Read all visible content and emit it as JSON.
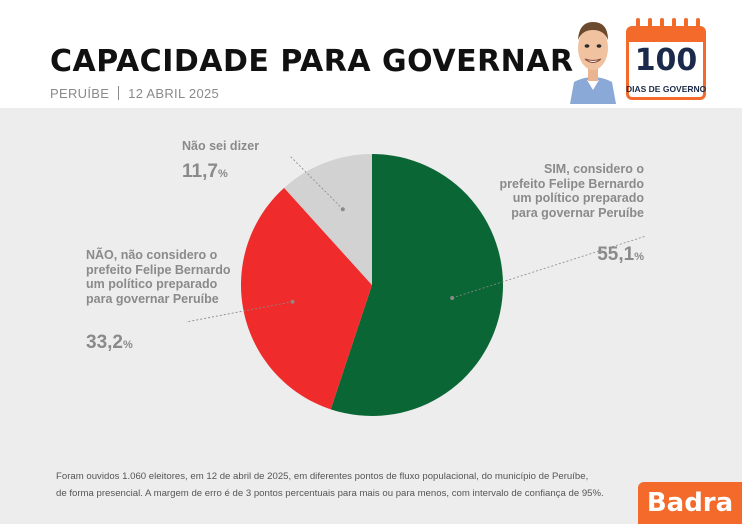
{
  "header": {
    "title": "CAPACIDADE PARA GOVERNAR",
    "city": "PERUÍBE",
    "date": "12 ABRIL 2025",
    "badge_number": "100",
    "badge_label": "DIAS DE GOVERNO"
  },
  "chart_data": {
    "type": "pie",
    "slices": [
      {
        "label": "SIM, considero o prefeito Felipe Bernardo um político preparado para governar Peruíbe",
        "value": 55.1,
        "display": "55,1",
        "color": "#0b6635"
      },
      {
        "label": "NÃO, não considero o prefeito Felipe Bernardo um político preparado para governar Peruíbe",
        "value": 33.2,
        "display": "33,2",
        "color": "#ef2b2b"
      },
      {
        "label": "Não sei dizer",
        "value": 11.7,
        "display": "11,7",
        "color": "#d2d2d2"
      }
    ],
    "unit": "%"
  },
  "labels": {
    "sim": [
      "SIM, considero o",
      "prefeito Felipe Bernardo",
      "um político preparado",
      "para governar Peruíbe"
    ],
    "nao": [
      "NÃO, não considero o",
      "prefeito Felipe Bernardo",
      "um político preparado",
      "para governar Peruíbe"
    ],
    "nsd": [
      "Não sei dizer"
    ]
  },
  "footnote": {
    "line1": "Foram ouvidos 1.060 eleitores, em 12 de abril de 2025, em diferentes pontos de fluxo populacional, do município de Peruíbe,",
    "line2": "de forma presencial. A margem de erro é de 3 pontos percentuais para mais ou para menos, com intervalo de confiança de 95%."
  },
  "brand": "Badra",
  "colors": {
    "accent": "#f36a2a",
    "navy": "#1b2a4a"
  }
}
